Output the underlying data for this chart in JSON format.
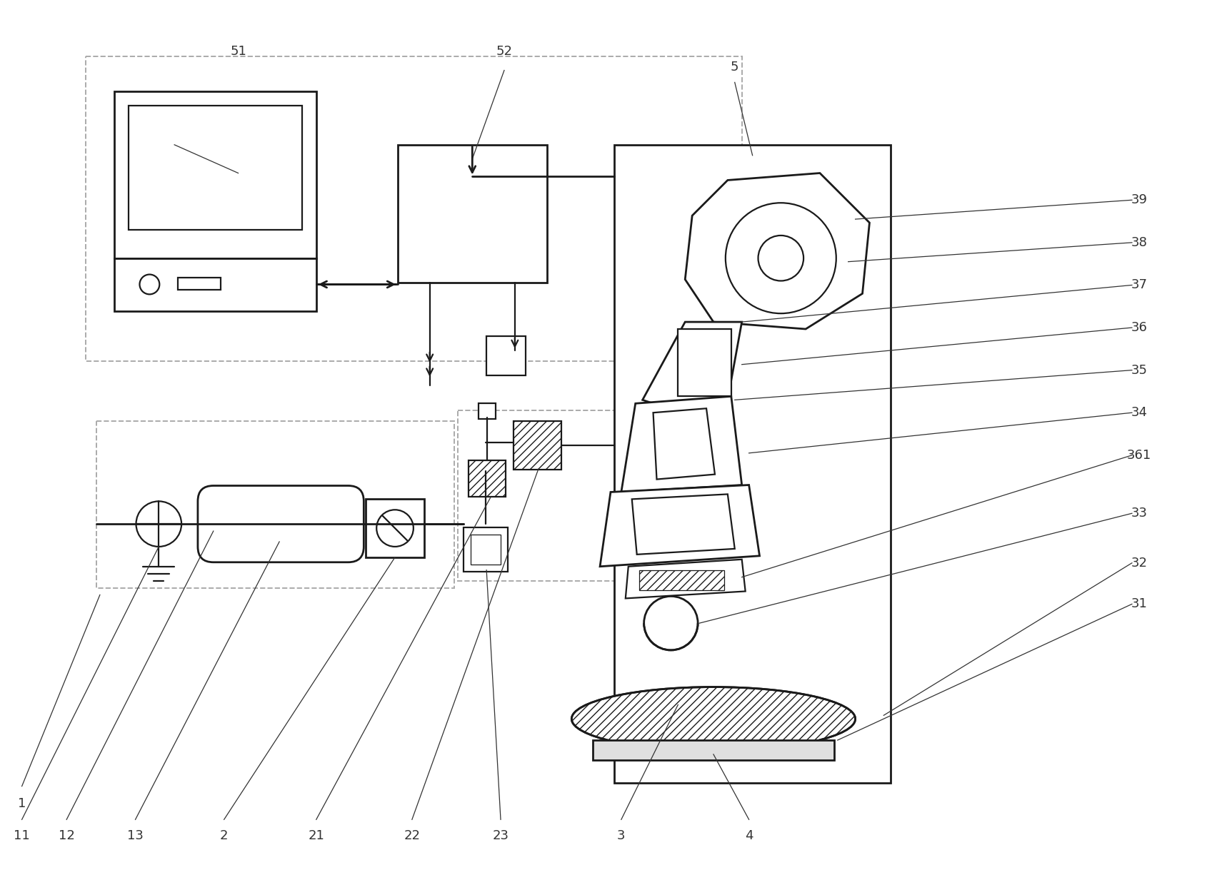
{
  "bg_color": "#ffffff",
  "lc": "#1a1a1a",
  "dc": "#aaaaaa",
  "tc": "#333333",
  "figsize": [
    16.97,
    12.19
  ],
  "dpi": 100,
  "lw": 1.6,
  "lwt": 2.0,
  "fs": 13
}
